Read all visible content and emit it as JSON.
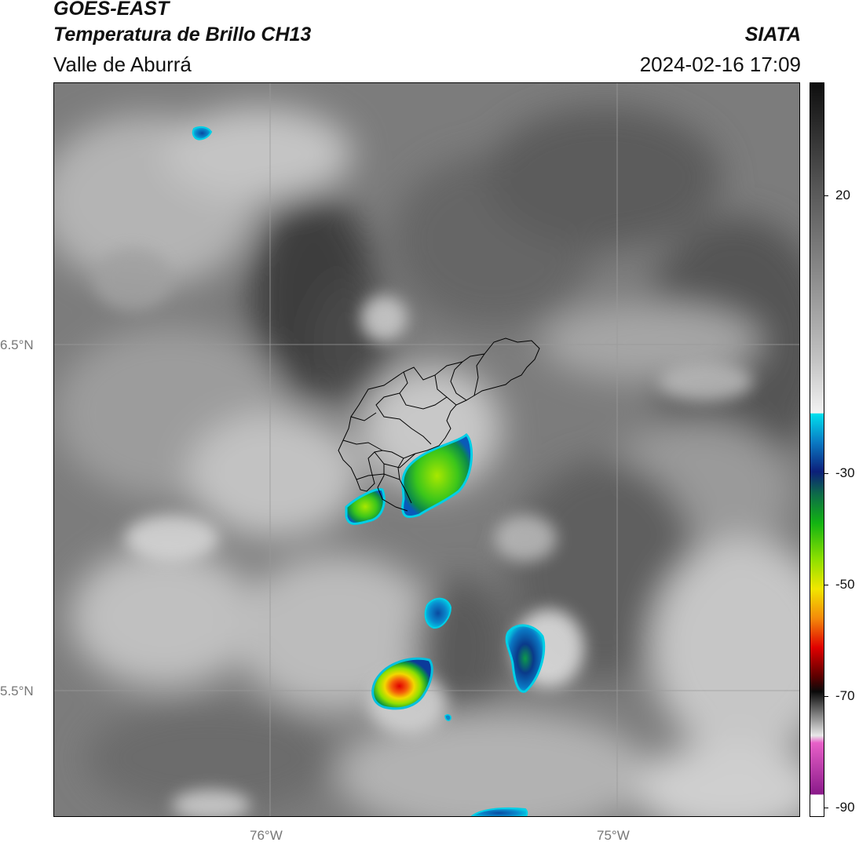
{
  "header": {
    "title_line1": "GOES-EAST",
    "title_line2": "Temperatura de Brillo CH13",
    "title_line3": "Valle de Aburrá",
    "brand": "SIATA",
    "timestamp": "2024-02-16 17:09"
  },
  "map": {
    "lat_labels": [
      "6.5°N",
      "5.5°N"
    ],
    "lon_labels": [
      "76°W",
      "75°W"
    ],
    "gridline_color": "#9a9a9a",
    "boundary_color": "#000000"
  },
  "colorbar": {
    "ticks": [
      "20",
      "-30",
      "-50",
      "-70",
      "-90"
    ],
    "colors": {
      "warm_dark": "#141414",
      "warm_mid": "#808080",
      "warm_light": "#eeeeee",
      "cyan": "#00d8ea",
      "blue": "#0a6fbf",
      "navy": "#0c1f7a",
      "green": "#12b412",
      "lime": "#8fe000",
      "yellow": "#f2e600",
      "orange": "#f58a0a",
      "red": "#e00000",
      "dark_red": "#5a0000",
      "black": "#0a0a0a",
      "pink": "#e860c8",
      "purple": "#8a1a8a"
    }
  }
}
